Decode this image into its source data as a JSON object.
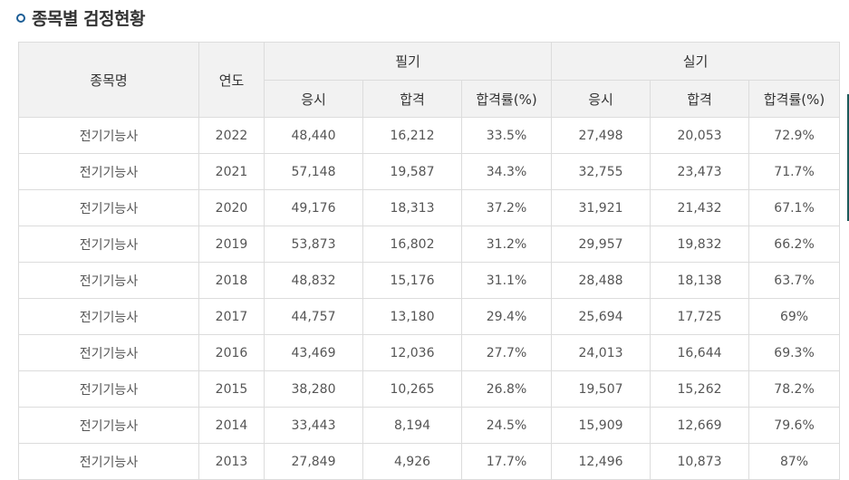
{
  "title": "종목별 검정현황",
  "colors": {
    "bullet": "#1d5e96",
    "header_bg": "#f2f2f2",
    "border": "#dcdcdc"
  },
  "icons": {
    "title_bullet": "circle-bullet-icon"
  },
  "table": {
    "headers": {
      "subject": "종목명",
      "year": "연도",
      "written_group": "필기",
      "practical_group": "실기",
      "applicants": "응시",
      "passed": "합격",
      "pass_rate": "합격률(%)"
    },
    "rows": [
      {
        "subject": "전기기능사",
        "year": "2022",
        "w_app": "48,440",
        "w_pass": "16,212",
        "w_rate": "33.5%",
        "p_app": "27,498",
        "p_pass": "20,053",
        "p_rate": "72.9%"
      },
      {
        "subject": "전기기능사",
        "year": "2021",
        "w_app": "57,148",
        "w_pass": "19,587",
        "w_rate": "34.3%",
        "p_app": "32,755",
        "p_pass": "23,473",
        "p_rate": "71.7%"
      },
      {
        "subject": "전기기능사",
        "year": "2020",
        "w_app": "49,176",
        "w_pass": "18,313",
        "w_rate": "37.2%",
        "p_app": "31,921",
        "p_pass": "21,432",
        "p_rate": "67.1%"
      },
      {
        "subject": "전기기능사",
        "year": "2019",
        "w_app": "53,873",
        "w_pass": "16,802",
        "w_rate": "31.2%",
        "p_app": "29,957",
        "p_pass": "19,832",
        "p_rate": "66.2%"
      },
      {
        "subject": "전기기능사",
        "year": "2018",
        "w_app": "48,832",
        "w_pass": "15,176",
        "w_rate": "31.1%",
        "p_app": "28,488",
        "p_pass": "18,138",
        "p_rate": "63.7%"
      },
      {
        "subject": "전기기능사",
        "year": "2017",
        "w_app": "44,757",
        "w_pass": "13,180",
        "w_rate": "29.4%",
        "p_app": "25,694",
        "p_pass": "17,725",
        "p_rate": "69%"
      },
      {
        "subject": "전기기능사",
        "year": "2016",
        "w_app": "43,469",
        "w_pass": "12,036",
        "w_rate": "27.7%",
        "p_app": "24,013",
        "p_pass": "16,644",
        "p_rate": "69.3%"
      },
      {
        "subject": "전기기능사",
        "year": "2015",
        "w_app": "38,280",
        "w_pass": "10,265",
        "w_rate": "26.8%",
        "p_app": "19,507",
        "p_pass": "15,262",
        "p_rate": "78.2%"
      },
      {
        "subject": "전기기능사",
        "year": "2014",
        "w_app": "33,443",
        "w_pass": "8,194",
        "w_rate": "24.5%",
        "p_app": "15,909",
        "p_pass": "12,669",
        "p_rate": "79.6%"
      },
      {
        "subject": "전기기능사",
        "year": "2013",
        "w_app": "27,849",
        "w_pass": "4,926",
        "w_rate": "17.7%",
        "p_app": "12,496",
        "p_pass": "10,873",
        "p_rate": "87%"
      }
    ]
  }
}
